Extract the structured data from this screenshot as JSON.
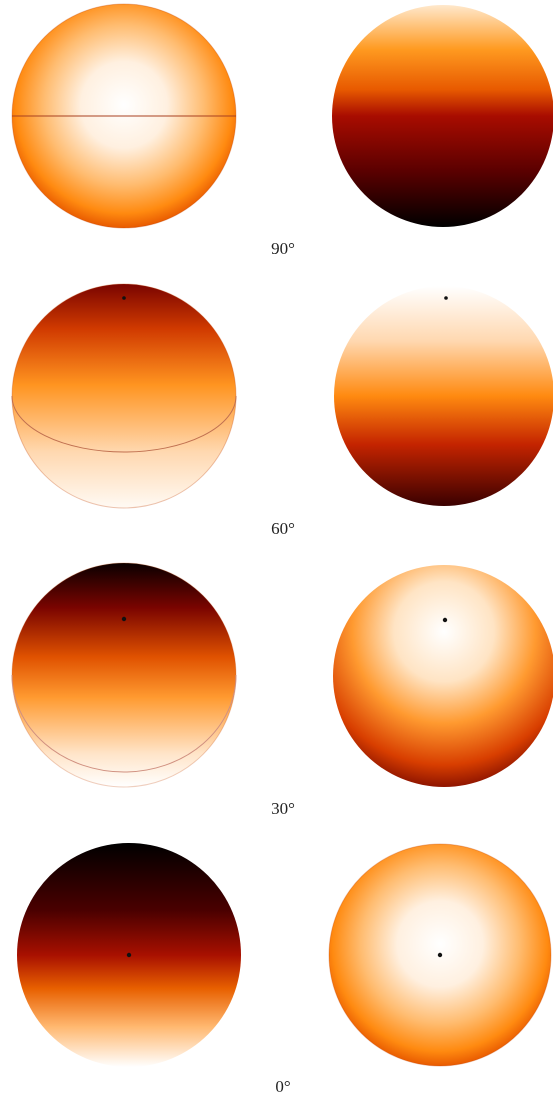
{
  "panels": [
    {
      "label": "90°"
    },
    {
      "label": "60°"
    },
    {
      "label": "30°"
    },
    {
      "label": "0°"
    }
  ]
}
